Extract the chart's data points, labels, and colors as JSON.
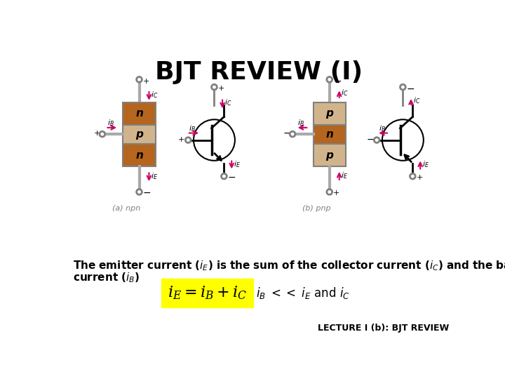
{
  "title": "BJT REVIEW (I)",
  "title_fontsize": 26,
  "title_fontweight": "bold",
  "bg_color": "#ffffff",
  "equation": "i_{E} = i_{B} + i_{C}",
  "eq_bg_color": "#ffff00",
  "footer": "LECTURE I (b): BJT REVIEW",
  "arrow_color": "#cc0066",
  "npn_label": "(a) npn",
  "pnp_label": "(b) pnp",
  "brown_color": "#b5651d",
  "tan_color": "#d2b48c",
  "wire_color": "#aaaaaa"
}
